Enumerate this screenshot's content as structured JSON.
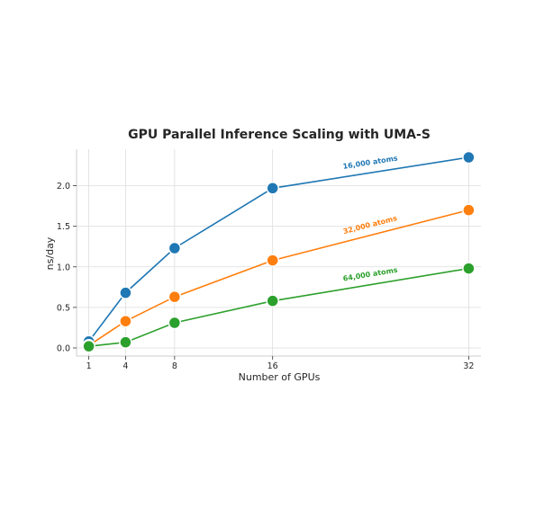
{
  "chart_data": {
    "type": "line",
    "title": "GPU Parallel Inference Scaling with UMA-S",
    "xlabel": "Number of GPUs",
    "ylabel": "ns/day",
    "x": [
      1,
      4,
      8,
      16,
      32
    ],
    "x_ticks": [
      "1",
      "4",
      "8",
      "16",
      "32"
    ],
    "y_ticks": [
      "0.0",
      "0.5",
      "1.0",
      "1.5",
      "2.0"
    ],
    "xlim": [
      0,
      33
    ],
    "ylim": [
      -0.1,
      2.45
    ],
    "grid": true,
    "series": [
      {
        "name": "16,000 atoms",
        "color": "#1f77b4",
        "values": [
          0.08,
          0.68,
          1.23,
          1.97,
          2.35
        ]
      },
      {
        "name": "32,000 atoms",
        "color": "#ff7f0e",
        "values": [
          0.03,
          0.33,
          0.63,
          1.08,
          1.7
        ]
      },
      {
        "name": "64,000 atoms",
        "color": "#2ca02c",
        "values": [
          0.02,
          0.07,
          0.31,
          0.58,
          0.98
        ]
      }
    ]
  }
}
